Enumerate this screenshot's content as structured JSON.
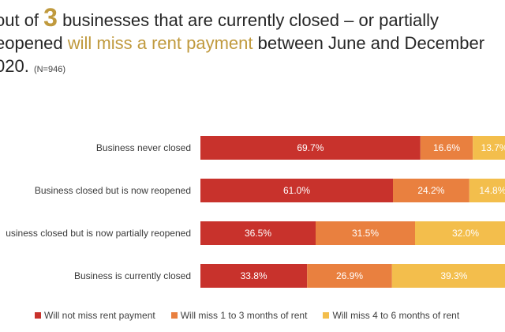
{
  "headline": {
    "part1": " out of ",
    "big_number": "3",
    "part2": " businesses that are currently closed – or partially",
    "line2_start": "eopened ",
    "highlight": "will miss a rent payment",
    "line2_end": " between June and December",
    "line3": "020. ",
    "note": "(N=946)"
  },
  "colors": {
    "will_not_miss": "#C8322C",
    "miss_1_3": "#E9803F",
    "miss_4_6": "#F3BE4C",
    "accent": "#C09A3E"
  },
  "chart_data": {
    "type": "bar",
    "orientation": "horizontal",
    "stacked": true,
    "categories": [
      "Business never closed",
      "Business closed but is now reopened",
      "usiness closed but is now partially reopened",
      "Business is currently closed"
    ],
    "series": [
      {
        "name": "Will not miss rent payment",
        "values": [
          69.7,
          61.0,
          36.5,
          33.8
        ],
        "labels": [
          "69.7%",
          "61.0%",
          "36.5%",
          "33.8%"
        ]
      },
      {
        "name": "Will miss 1 to 3 months of rent",
        "values": [
          16.6,
          24.2,
          31.5,
          26.9
        ],
        "labels": [
          "16.6%",
          "24.2%",
          "31.5%",
          "26.9%"
        ]
      },
      {
        "name": "Will miss 4 to 6 months of rent",
        "values": [
          13.7,
          14.8,
          32.0,
          39.3
        ],
        "labels": [
          "13.7%",
          "14.8%",
          "32.0%",
          "39.3%"
        ]
      }
    ],
    "xlim": [
      0,
      100
    ],
    "grid": false,
    "legend_position": "bottom"
  }
}
